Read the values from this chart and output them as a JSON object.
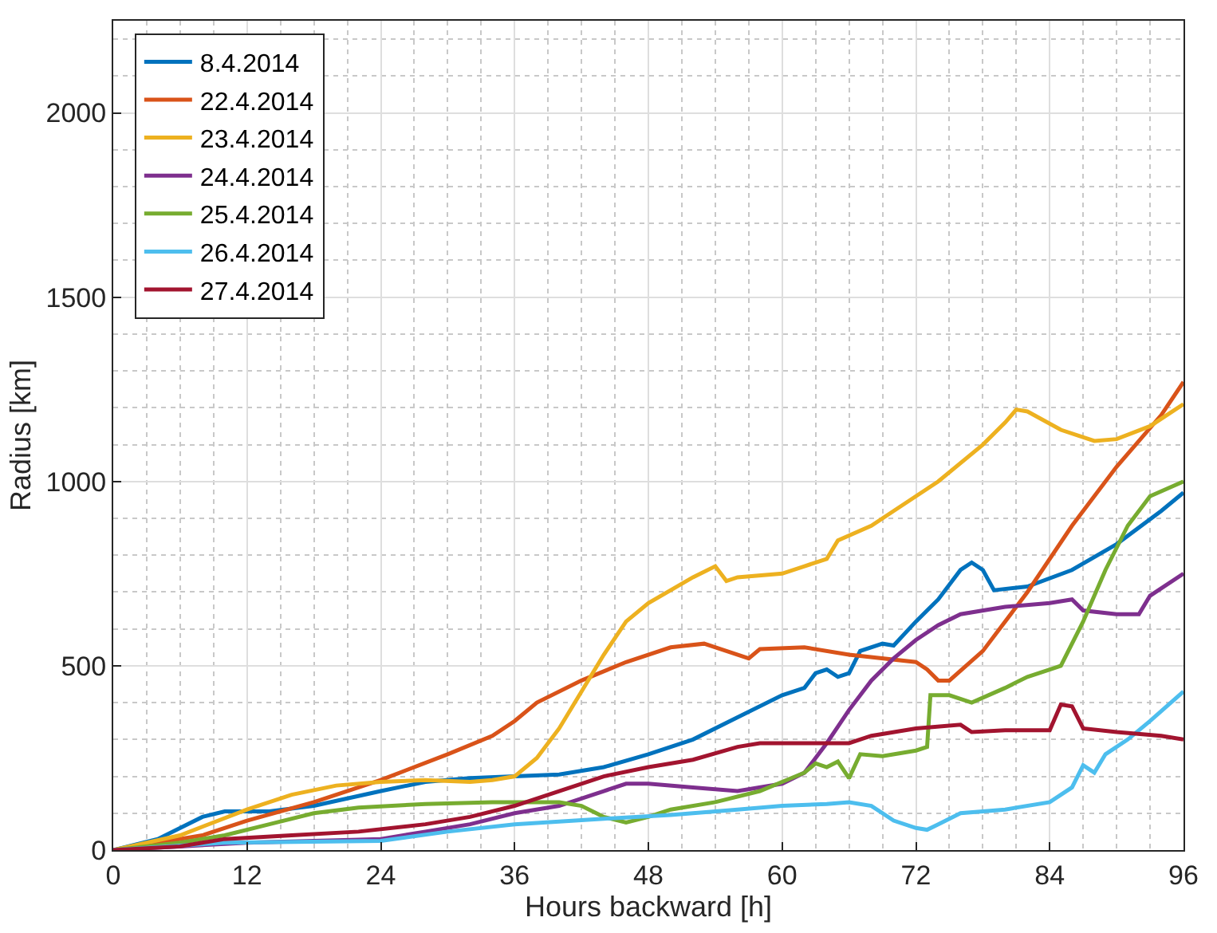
{
  "chart_data": {
    "type": "line",
    "xlabel": "Hours backward [h]",
    "ylabel": "Radius [km]",
    "xlim": [
      0,
      96
    ],
    "xticks": [
      0,
      12,
      24,
      36,
      48,
      60,
      72,
      84,
      96
    ],
    "ylim": [
      0,
      2250
    ],
    "yticks": [
      0,
      500,
      1000,
      1500,
      2000
    ],
    "grid": true,
    "legend": "top left",
    "marker": "none",
    "line_style": "solid",
    "series": [
      {
        "name": "8.4.2014",
        "color": "#0072bd",
        "x": [
          0,
          4,
          8,
          10,
          14,
          18,
          24,
          28,
          32,
          36,
          40,
          44,
          48,
          52,
          56,
          60,
          62,
          63,
          64,
          65,
          66,
          67,
          69,
          70,
          72,
          74,
          76,
          77,
          78,
          79,
          82,
          86,
          90,
          94,
          96
        ],
        "values": [
          0,
          30,
          90,
          105,
          105,
          120,
          160,
          185,
          195,
          200,
          205,
          225,
          260,
          300,
          360,
          420,
          440,
          480,
          490,
          470,
          480,
          540,
          560,
          555,
          620,
          680,
          760,
          780,
          760,
          705,
          715,
          760,
          830,
          920,
          970
        ]
      },
      {
        "name": "22.4.2014",
        "color": "#d95319",
        "x": [
          0,
          8,
          12,
          18,
          24,
          30,
          34,
          36,
          38,
          42,
          46,
          50,
          53,
          55,
          57,
          58,
          62,
          66,
          72,
          73,
          74,
          75,
          78,
          82,
          86,
          90,
          94,
          96
        ],
        "values": [
          0,
          40,
          80,
          130,
          190,
          260,
          310,
          350,
          400,
          460,
          510,
          550,
          560,
          540,
          520,
          545,
          550,
          530,
          510,
          490,
          460,
          460,
          540,
          700,
          880,
          1040,
          1180,
          1270
        ]
      },
      {
        "name": "23.4.2014",
        "color": "#edb120",
        "x": [
          0,
          6,
          12,
          16,
          20,
          24,
          28,
          32,
          34,
          36,
          38,
          40,
          42,
          44,
          46,
          48,
          52,
          54,
          55,
          56,
          60,
          62,
          64,
          65,
          68,
          70,
          74,
          78,
          80,
          81,
          82,
          85,
          88,
          90,
          93,
          96
        ],
        "values": [
          0,
          40,
          110,
          150,
          175,
          185,
          190,
          185,
          190,
          200,
          250,
          330,
          430,
          530,
          620,
          670,
          740,
          770,
          730,
          740,
          750,
          770,
          790,
          840,
          880,
          920,
          1000,
          1100,
          1160,
          1195,
          1190,
          1140,
          1110,
          1115,
          1150,
          1210
        ]
      },
      {
        "name": "24.4.2014",
        "color": "#7e2f8e",
        "x": [
          0,
          6,
          12,
          24,
          28,
          32,
          36,
          40,
          44,
          46,
          48,
          52,
          56,
          60,
          62,
          64,
          66,
          68,
          70,
          72,
          74,
          76,
          80,
          84,
          86,
          87,
          90,
          92,
          93,
          96
        ],
        "values": [
          0,
          10,
          20,
          30,
          50,
          70,
          100,
          120,
          160,
          180,
          180,
          170,
          160,
          180,
          210,
          290,
          380,
          460,
          520,
          570,
          610,
          640,
          660,
          670,
          680,
          650,
          640,
          640,
          690,
          750
        ]
      },
      {
        "name": "25.4.2014",
        "color": "#77ac30",
        "x": [
          0,
          6,
          10,
          14,
          18,
          22,
          28,
          34,
          40,
          42,
          44,
          46,
          48,
          50,
          54,
          58,
          62,
          63,
          64,
          65,
          66,
          67,
          69,
          72,
          73,
          73.3,
          75,
          77,
          80,
          82,
          84,
          85,
          87,
          89,
          91,
          93,
          96
        ],
        "values": [
          0,
          20,
          40,
          70,
          100,
          115,
          125,
          130,
          130,
          120,
          90,
          75,
          90,
          110,
          130,
          160,
          210,
          235,
          225,
          240,
          195,
          260,
          255,
          270,
          280,
          420,
          420,
          400,
          440,
          470,
          490,
          500,
          620,
          760,
          880,
          960,
          1000
        ]
      },
      {
        "name": "26.4.2014",
        "color": "#4dbeee",
        "x": [
          0,
          10,
          24,
          30,
          36,
          44,
          50,
          56,
          60,
          64,
          66,
          68,
          70,
          72,
          73,
          74,
          76,
          80,
          84,
          86,
          87,
          88,
          89,
          91,
          93,
          96
        ],
        "values": [
          0,
          20,
          25,
          50,
          70,
          85,
          95,
          110,
          120,
          125,
          130,
          120,
          80,
          60,
          55,
          70,
          100,
          110,
          130,
          170,
          230,
          210,
          260,
          300,
          350,
          430
        ]
      },
      {
        "name": "27.4.2014",
        "color": "#a2142f",
        "x": [
          0,
          6,
          10,
          16,
          22,
          28,
          32,
          36,
          40,
          44,
          48,
          52,
          56,
          58,
          62,
          66,
          68,
          72,
          76,
          77,
          80,
          84,
          85,
          86,
          87,
          90,
          94,
          96
        ],
        "values": [
          0,
          10,
          30,
          40,
          50,
          70,
          90,
          120,
          160,
          200,
          225,
          245,
          280,
          290,
          290,
          290,
          310,
          330,
          340,
          320,
          325,
          325,
          395,
          390,
          330,
          320,
          310,
          300
        ]
      }
    ]
  }
}
